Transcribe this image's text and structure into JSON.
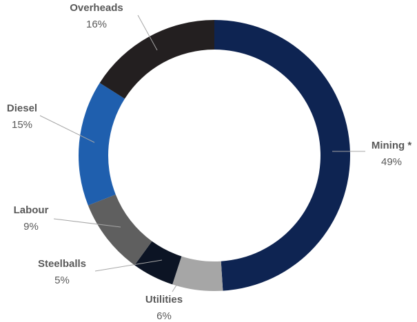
{
  "chart_data": {
    "type": "donut",
    "categories": [
      "Mining *",
      "Utilities",
      "Steelballs",
      "Labour",
      "Diesel",
      "Overheads"
    ],
    "values": [
      49,
      6,
      5,
      9,
      15,
      16
    ],
    "value_labels": [
      "49%",
      "6%",
      "5%",
      "9%",
      "15%",
      "16%"
    ],
    "colors": [
      "#0e2452",
      "#a6a6a6",
      "#0c1424",
      "#5f5f5f",
      "#1f5fae",
      "#231f20"
    ]
  }
}
